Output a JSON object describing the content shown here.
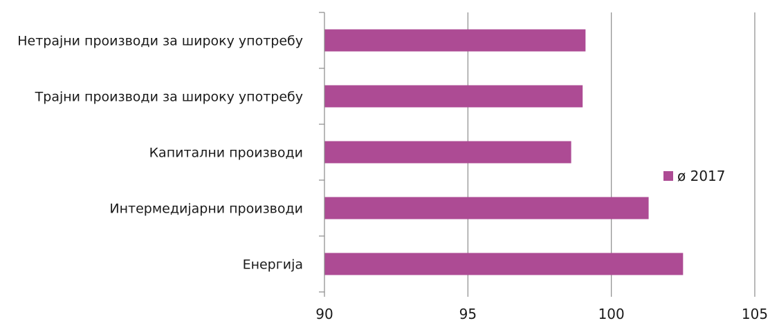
{
  "chart_data": {
    "type": "bar",
    "orientation": "horizontal",
    "categories": [
      "Нетрајни производи за широку употребу",
      "Трајни производи за широку употребу",
      "Капитални производи",
      "Интермедијарни производи",
      "Енергија"
    ],
    "series": [
      {
        "name": "ø 2017",
        "values": [
          99.1,
          99.0,
          98.6,
          101.3,
          102.5
        ],
        "color": "#ad4b94"
      }
    ],
    "xlim": [
      90,
      105
    ],
    "xticks": [
      "90",
      "95",
      "100",
      "105"
    ],
    "grid": true,
    "legend_position": "right"
  }
}
